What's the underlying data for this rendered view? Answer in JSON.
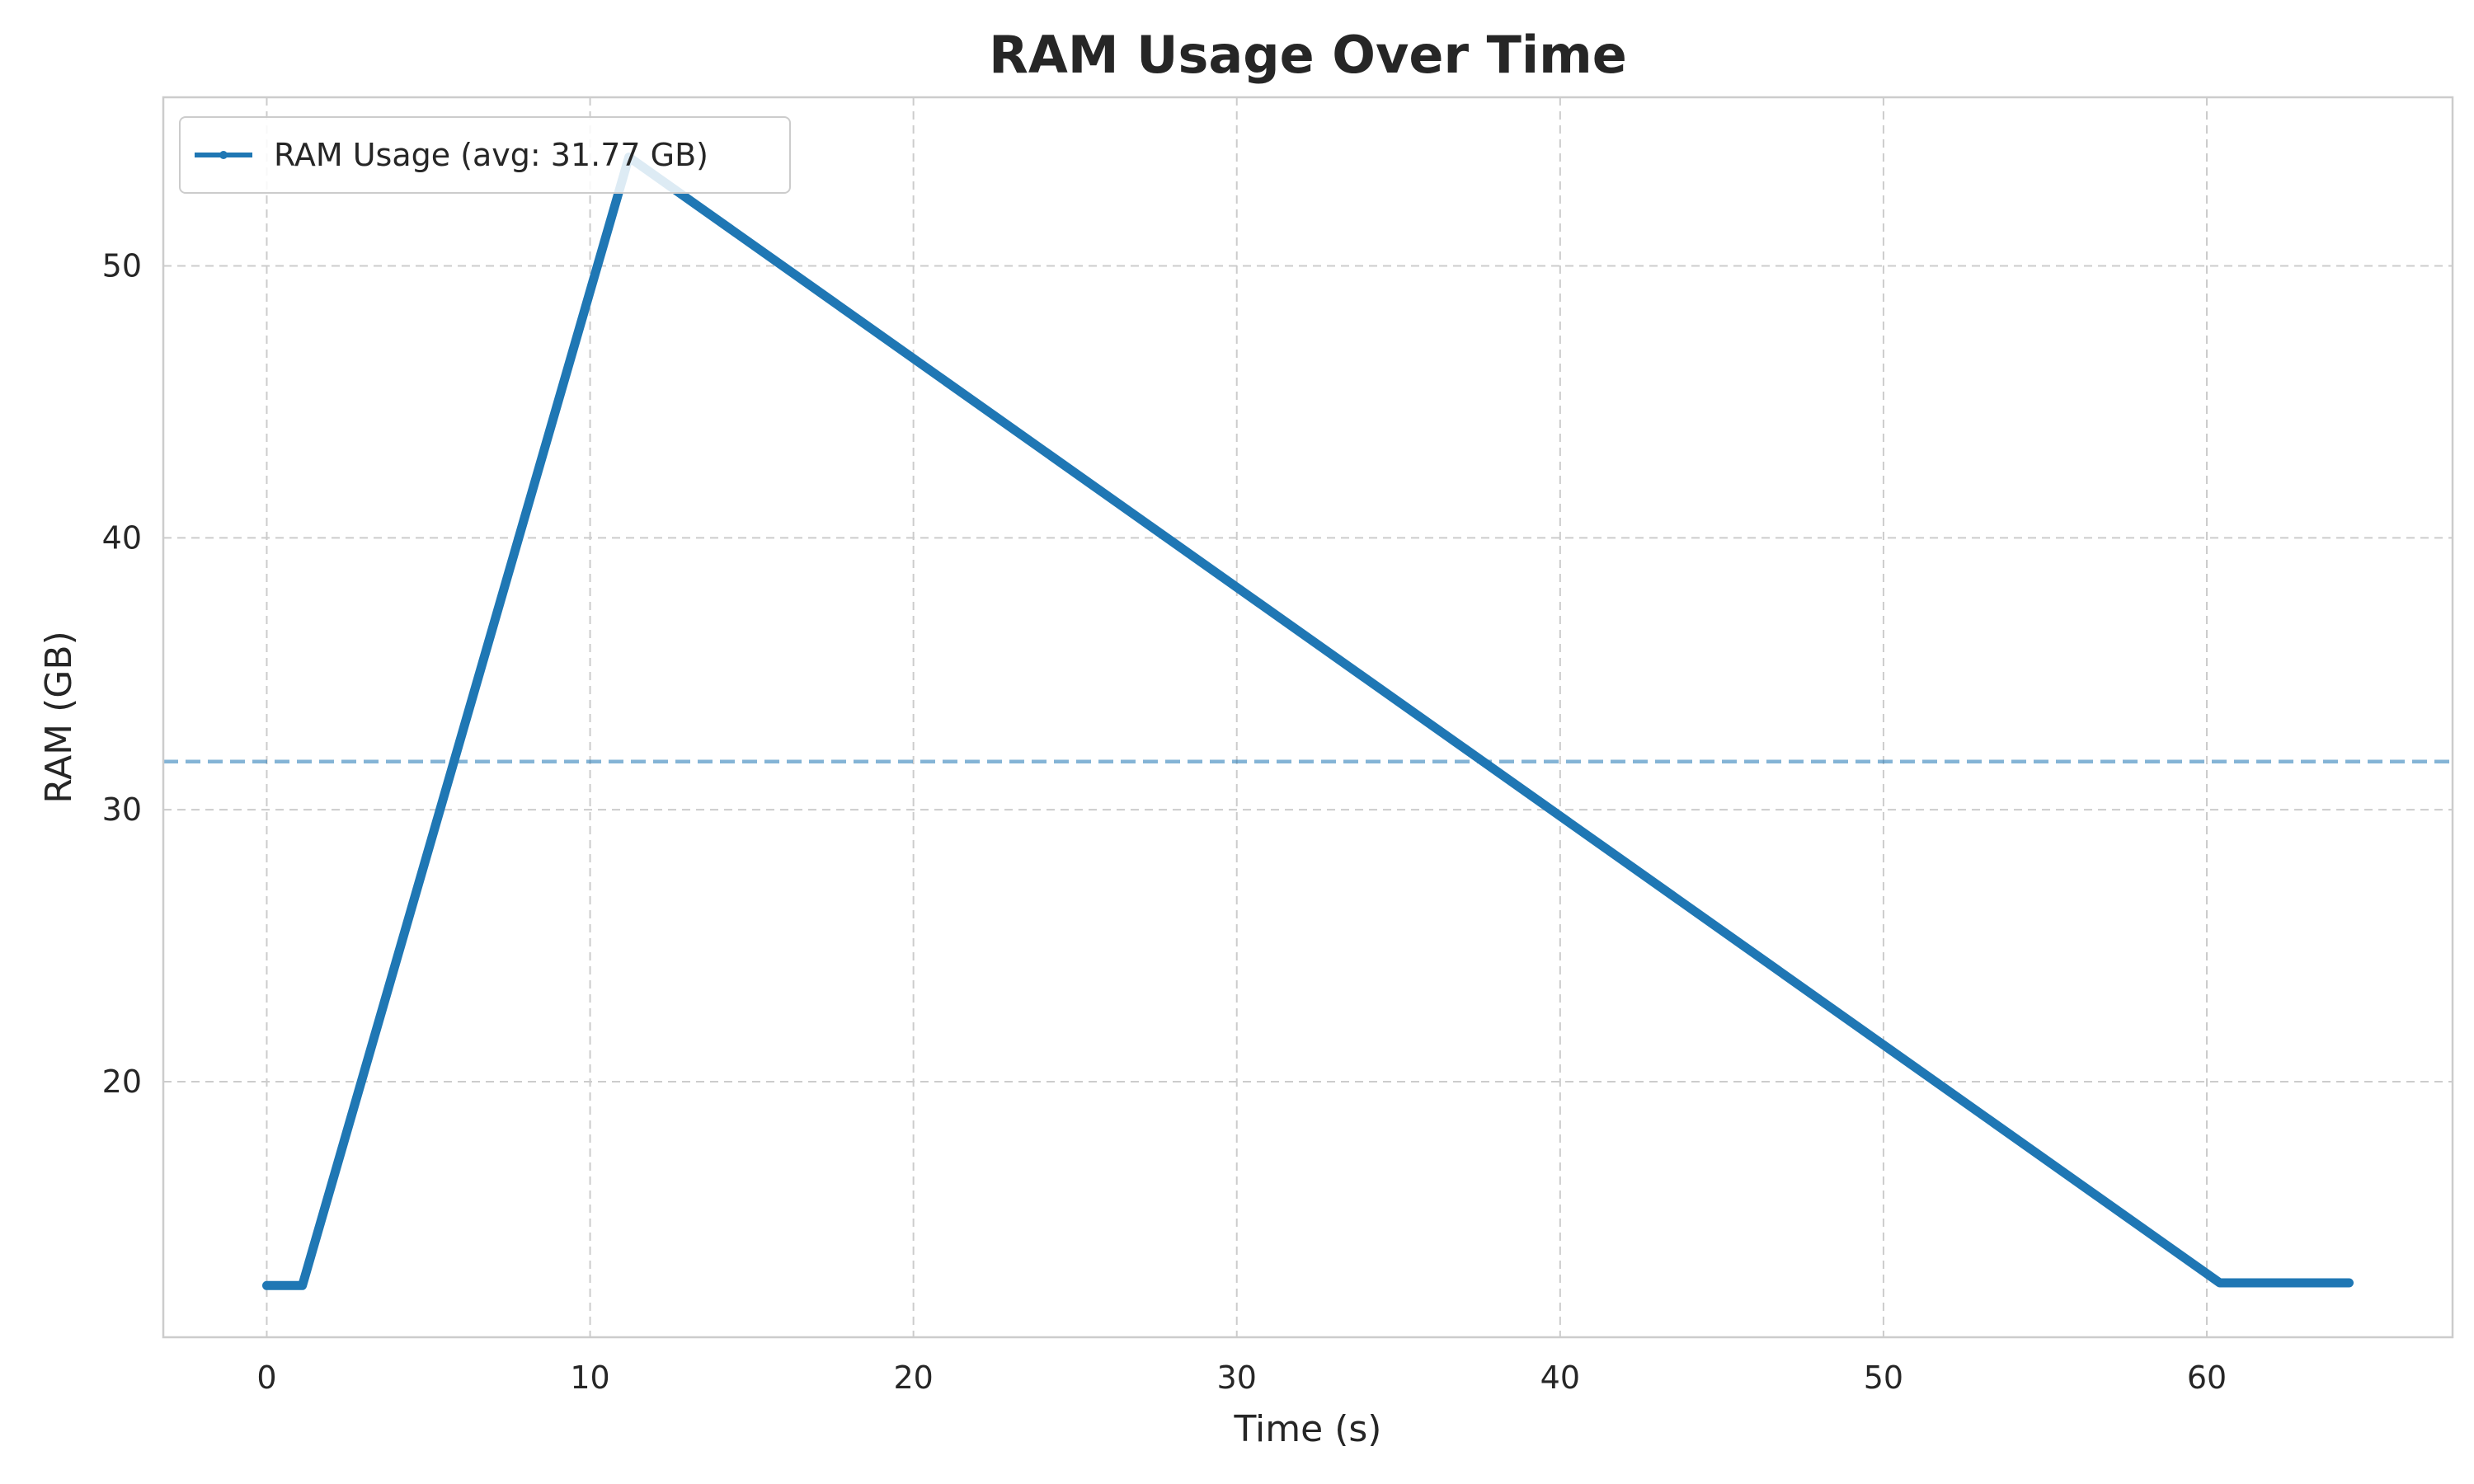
{
  "chart_data": {
    "type": "line",
    "title": "RAM Usage Over Time",
    "xlabel": "Time (s)",
    "ylabel": "RAM (GB)",
    "xlim": [
      -3.2,
      67.6
    ],
    "ylim": [
      10.6,
      56.2
    ],
    "xticks": [
      0,
      10,
      20,
      30,
      40,
      50,
      60
    ],
    "yticks": [
      20,
      30,
      40,
      50
    ],
    "grid": true,
    "legend_position": "top-left",
    "series": [
      {
        "name": "RAM Usage (avg: 31.77 GB)",
        "color": "#1f77b4",
        "x": [
          0,
          1.1,
          11.2,
          60.4,
          64.4
        ],
        "y": [
          12.5,
          12.5,
          54.0,
          12.6,
          12.6
        ]
      }
    ],
    "reference_lines": [
      {
        "orientation": "horizontal",
        "y": 31.77,
        "style": "dashed",
        "color": "#1f77b4"
      }
    ]
  }
}
